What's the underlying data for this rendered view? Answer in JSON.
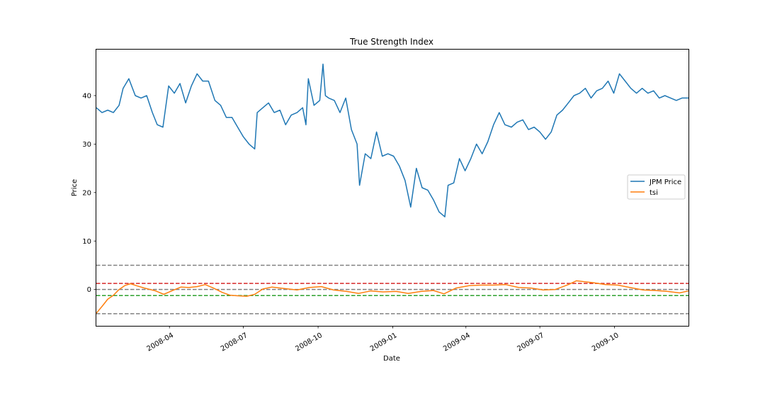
{
  "chart_data": {
    "type": "line",
    "title": "True Strength Index",
    "xlabel": "Date",
    "ylabel": "Price",
    "xlim": [
      "2008-01-02",
      "2009-12-31"
    ],
    "ylim": [
      -7.5,
      49.5
    ],
    "x_ticks": [
      "2008-04",
      "2008-07",
      "2008-10",
      "2009-01",
      "2009-04",
      "2009-07",
      "2009-10"
    ],
    "x_tick_dates": [
      "2008-04-01",
      "2008-07-01",
      "2008-10-01",
      "2009-01-01",
      "2009-04-01",
      "2009-07-01",
      "2009-10-01"
    ],
    "y_ticks": [
      0,
      10,
      20,
      30,
      40
    ],
    "grid": false,
    "legend_position": "center-right",
    "series": [
      {
        "name": "JPM Price",
        "color": "#1f77b4",
        "x": [
          "2008-01-02",
          "2008-01-09",
          "2008-01-16",
          "2008-01-23",
          "2008-01-30",
          "2008-02-04",
          "2008-02-11",
          "2008-02-19",
          "2008-02-26",
          "2008-03-04",
          "2008-03-11",
          "2008-03-17",
          "2008-03-24",
          "2008-03-31",
          "2008-04-07",
          "2008-04-14",
          "2008-04-21",
          "2008-04-28",
          "2008-05-05",
          "2008-05-12",
          "2008-05-19",
          "2008-05-27",
          "2008-06-03",
          "2008-06-10",
          "2008-06-17",
          "2008-06-24",
          "2008-07-01",
          "2008-07-08",
          "2008-07-15",
          "2008-07-18",
          "2008-07-25",
          "2008-08-01",
          "2008-08-08",
          "2008-08-15",
          "2008-08-22",
          "2008-08-29",
          "2008-09-05",
          "2008-09-12",
          "2008-09-16",
          "2008-09-19",
          "2008-09-26",
          "2008-10-03",
          "2008-10-07",
          "2008-10-10",
          "2008-10-14",
          "2008-10-21",
          "2008-10-28",
          "2008-11-04",
          "2008-11-11",
          "2008-11-18",
          "2008-11-21",
          "2008-11-28",
          "2008-12-05",
          "2008-12-12",
          "2008-12-19",
          "2008-12-26",
          "2009-01-02",
          "2009-01-09",
          "2009-01-16",
          "2009-01-23",
          "2009-01-30",
          "2009-02-06",
          "2009-02-13",
          "2009-02-20",
          "2009-02-27",
          "2009-03-06",
          "2009-03-10",
          "2009-03-17",
          "2009-03-24",
          "2009-03-31",
          "2009-04-07",
          "2009-04-14",
          "2009-04-21",
          "2009-04-28",
          "2009-05-05",
          "2009-05-12",
          "2009-05-19",
          "2009-05-27",
          "2009-06-03",
          "2009-06-10",
          "2009-06-17",
          "2009-06-24",
          "2009-07-01",
          "2009-07-08",
          "2009-07-15",
          "2009-07-22",
          "2009-07-29",
          "2009-08-05",
          "2009-08-12",
          "2009-08-19",
          "2009-08-26",
          "2009-09-02",
          "2009-09-09",
          "2009-09-16",
          "2009-09-23",
          "2009-09-30",
          "2009-10-07",
          "2009-10-14",
          "2009-10-21",
          "2009-10-28",
          "2009-11-04",
          "2009-11-11",
          "2009-11-18",
          "2009-11-25",
          "2009-12-02",
          "2009-12-09",
          "2009-12-16",
          "2009-12-23",
          "2009-12-31"
        ],
        "values": [
          37.5,
          36.5,
          37.0,
          36.5,
          38.0,
          41.5,
          43.5,
          40.0,
          39.5,
          40.0,
          36.5,
          34.0,
          33.5,
          42.0,
          40.5,
          42.5,
          38.5,
          42.0,
          44.5,
          43.0,
          43.0,
          39.0,
          38.0,
          35.5,
          35.5,
          33.5,
          31.5,
          30.0,
          29.0,
          36.5,
          37.5,
          38.5,
          36.5,
          37.0,
          34.0,
          36.0,
          36.5,
          37.5,
          34.0,
          43.5,
          38.0,
          39.0,
          46.5,
          40.0,
          39.5,
          39.0,
          36.5,
          39.5,
          33.0,
          30.0,
          21.5,
          28.0,
          27.0,
          32.5,
          27.5,
          28.0,
          27.5,
          25.5,
          22.5,
          17.0,
          25.0,
          21.0,
          20.5,
          18.5,
          16.0,
          15.0,
          21.5,
          22.0,
          27.0,
          24.5,
          27.0,
          30.0,
          28.0,
          30.5,
          34.0,
          36.5,
          34.0,
          33.5,
          34.5,
          35.0,
          33.0,
          33.5,
          32.5,
          31.0,
          32.5,
          36.0,
          37.0,
          38.5,
          40.0,
          40.5,
          41.5,
          39.5,
          41.0,
          41.5,
          43.0,
          40.5,
          44.5,
          43.0,
          41.5,
          40.5,
          41.5,
          40.5,
          41.0,
          39.5,
          40.0,
          39.5,
          39.0,
          39.5,
          39.5
        ]
      },
      {
        "name": "tsi",
        "color": "#ff7f0e",
        "x": [
          "2008-01-02",
          "2008-01-09",
          "2008-01-16",
          "2008-01-23",
          "2008-01-30",
          "2008-02-06",
          "2008-02-13",
          "2008-02-20",
          "2008-03-01",
          "2008-03-15",
          "2008-03-25",
          "2008-04-05",
          "2008-04-15",
          "2008-04-25",
          "2008-05-05",
          "2008-05-15",
          "2008-05-25",
          "2008-06-05",
          "2008-06-15",
          "2008-06-25",
          "2008-07-05",
          "2008-07-15",
          "2008-07-25",
          "2008-08-05",
          "2008-08-20",
          "2008-09-05",
          "2008-09-20",
          "2008-10-05",
          "2008-10-20",
          "2008-11-05",
          "2008-11-20",
          "2008-12-05",
          "2008-12-20",
          "2009-01-05",
          "2009-01-20",
          "2009-02-05",
          "2009-02-20",
          "2009-03-05",
          "2009-03-20",
          "2009-04-05",
          "2009-04-20",
          "2009-05-05",
          "2009-05-20",
          "2009-06-05",
          "2009-06-20",
          "2009-07-05",
          "2009-07-20",
          "2009-08-05",
          "2009-08-15",
          "2009-08-25",
          "2009-09-05",
          "2009-09-20",
          "2009-10-05",
          "2009-10-20",
          "2009-11-05",
          "2009-11-20",
          "2009-12-05",
          "2009-12-20",
          "2009-12-31"
        ],
        "values": [
          -4.9,
          -3.5,
          -2.0,
          -1.2,
          0.0,
          0.8,
          1.2,
          0.8,
          0.3,
          -0.3,
          -1.0,
          -0.2,
          0.5,
          0.4,
          0.6,
          1.0,
          0.3,
          -0.6,
          -1.2,
          -1.3,
          -1.4,
          -1.0,
          0.1,
          0.5,
          0.2,
          -0.1,
          0.4,
          0.6,
          -0.1,
          -0.4,
          -0.8,
          -0.3,
          -0.5,
          -0.4,
          -0.8,
          -0.4,
          -0.2,
          -0.9,
          0.3,
          0.8,
          0.9,
          0.9,
          1.0,
          0.4,
          0.3,
          -0.1,
          0.0,
          1.0,
          1.8,
          1.6,
          1.4,
          1.0,
          0.9,
          0.4,
          -0.1,
          -0.2,
          -0.4,
          -0.7,
          -0.3
        ]
      }
    ],
    "hlines": [
      {
        "y": 5,
        "color": "#808080",
        "style": "dashed"
      },
      {
        "y": -5,
        "color": "#808080",
        "style": "dashed"
      },
      {
        "y": 0,
        "color": "#808080",
        "style": "dashed"
      },
      {
        "y": 1.25,
        "color": "#d62728",
        "style": "dashed"
      },
      {
        "y": -1.25,
        "color": "#2ca02c",
        "style": "dashed"
      }
    ]
  }
}
